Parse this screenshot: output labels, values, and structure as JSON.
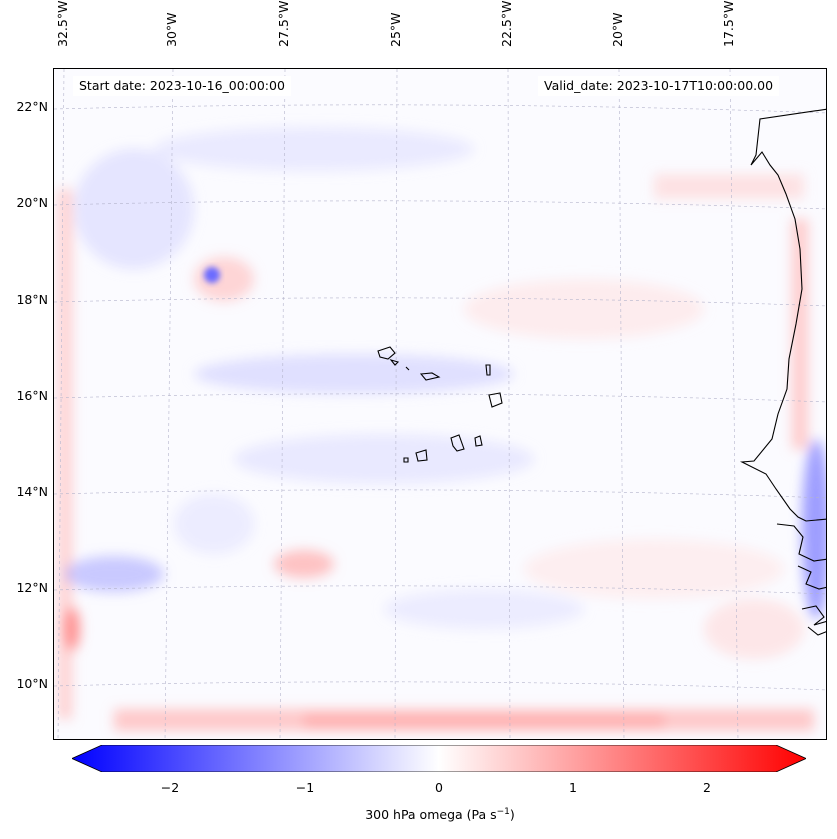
{
  "map": {
    "start_date_label": "Start date: 2023-10-16_00:00:00",
    "valid_date_label": "Valid_date: 2023-10-17T10:00:00.00",
    "lon_labels": [
      "32.5°W",
      "30°W",
      "27.5°W",
      "25°W",
      "22.5°W",
      "20°W",
      "17.5°W"
    ],
    "lat_labels": [
      "22°N",
      "20°N",
      "18°N",
      "16°N",
      "14°N",
      "12°N",
      "10°N"
    ],
    "field": "300 hPa omega",
    "colors": {
      "negative": "#0000ff",
      "zero": "#ffffff",
      "positive": "#ff0000",
      "coast": "#000000",
      "grid": "#b0b0c8"
    }
  },
  "colorbar": {
    "tick_labels": [
      "−2",
      "−1",
      "0",
      "1",
      "2"
    ],
    "title_prefix": "300 hPa omega (Pa s",
    "title_exponent": "−1",
    "title_suffix": ")",
    "min": -2.5,
    "max": 2.5
  }
}
